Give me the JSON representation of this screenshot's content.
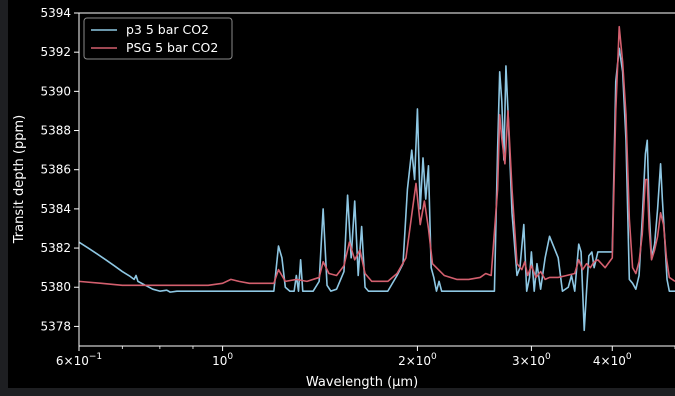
{
  "chart_data": {
    "type": "line",
    "title": "",
    "xlabel": "Wavelength (µm)",
    "ylabel": "Transit depth (ppm)",
    "xscale": "log",
    "xlim": [
      0.6,
      5.0
    ],
    "ylim": [
      5377.0,
      5394.0
    ],
    "grid": false,
    "legend_position": "upper-left",
    "background": "#000000",
    "foreground": "#ffffff",
    "x_ticks": [
      {
        "value": 0.6,
        "base": "6×10",
        "exp": "−1"
      },
      {
        "value": 1.0,
        "base": "10",
        "exp": "0"
      },
      {
        "value": 2.0,
        "base": "2×10",
        "exp": "0"
      },
      {
        "value": 3.0,
        "base": "3×10",
        "exp": "0"
      },
      {
        "value": 4.0,
        "base": "4×10",
        "exp": "0"
      }
    ],
    "y_ticks": [
      5378,
      5380,
      5382,
      5384,
      5386,
      5388,
      5390,
      5392,
      5394
    ],
    "series": [
      {
        "name": "p3 5 bar CO2",
        "color": "#8ec7e3",
        "points": [
          [
            0.6,
            5382.3
          ],
          [
            0.62,
            5382.0
          ],
          [
            0.64,
            5381.7
          ],
          [
            0.66,
            5381.4
          ],
          [
            0.68,
            5381.1
          ],
          [
            0.7,
            5380.8
          ],
          [
            0.72,
            5380.55
          ],
          [
            0.73,
            5380.4
          ],
          [
            0.735,
            5380.6
          ],
          [
            0.74,
            5380.3
          ],
          [
            0.76,
            5380.1
          ],
          [
            0.78,
            5379.9
          ],
          [
            0.8,
            5379.8
          ],
          [
            0.82,
            5379.85
          ],
          [
            0.83,
            5379.75
          ],
          [
            0.85,
            5379.8
          ],
          [
            0.9,
            5379.8
          ],
          [
            1.0,
            5379.8
          ],
          [
            1.1,
            5379.8
          ],
          [
            1.18,
            5379.8
          ],
          [
            1.2,
            5379.8
          ],
          [
            1.22,
            5382.1
          ],
          [
            1.235,
            5381.5
          ],
          [
            1.25,
            5380.0
          ],
          [
            1.27,
            5379.8
          ],
          [
            1.29,
            5379.8
          ],
          [
            1.3,
            5380.6
          ],
          [
            1.31,
            5379.8
          ],
          [
            1.32,
            5381.4
          ],
          [
            1.33,
            5379.8
          ],
          [
            1.34,
            5379.8
          ],
          [
            1.38,
            5379.8
          ],
          [
            1.41,
            5380.3
          ],
          [
            1.43,
            5384.0
          ],
          [
            1.45,
            5380.1
          ],
          [
            1.47,
            5379.8
          ],
          [
            1.5,
            5379.9
          ],
          [
            1.54,
            5380.8
          ],
          [
            1.56,
            5384.7
          ],
          [
            1.58,
            5381.5
          ],
          [
            1.6,
            5384.4
          ],
          [
            1.62,
            5380.6
          ],
          [
            1.64,
            5383.1
          ],
          [
            1.66,
            5380.0
          ],
          [
            1.68,
            5379.8
          ],
          [
            1.72,
            5379.8
          ],
          [
            1.8,
            5379.8
          ],
          [
            1.86,
            5380.6
          ],
          [
            1.9,
            5381.2
          ],
          [
            1.93,
            5385.0
          ],
          [
            1.96,
            5387.0
          ],
          [
            1.98,
            5385.5
          ],
          [
            2.0,
            5389.1
          ],
          [
            2.02,
            5384.0
          ],
          [
            2.04,
            5386.6
          ],
          [
            2.06,
            5384.5
          ],
          [
            2.08,
            5386.2
          ],
          [
            2.1,
            5381.0
          ],
          [
            2.12,
            5380.5
          ],
          [
            2.14,
            5379.8
          ],
          [
            2.16,
            5380.3
          ],
          [
            2.18,
            5379.8
          ],
          [
            2.3,
            5379.8
          ],
          [
            2.5,
            5379.8
          ],
          [
            2.6,
            5379.8
          ],
          [
            2.63,
            5379.8
          ],
          [
            2.66,
            5387.0
          ],
          [
            2.68,
            5391.0
          ],
          [
            2.7,
            5389.5
          ],
          [
            2.72,
            5386.5
          ],
          [
            2.74,
            5391.3
          ],
          [
            2.76,
            5389.0
          ],
          [
            2.8,
            5383.8
          ],
          [
            2.85,
            5380.6
          ],
          [
            2.88,
            5381.0
          ],
          [
            2.92,
            5383.2
          ],
          [
            2.95,
            5379.8
          ],
          [
            2.98,
            5380.5
          ],
          [
            3.0,
            5381.8
          ],
          [
            3.03,
            5379.8
          ],
          [
            3.06,
            5381.2
          ],
          [
            3.1,
            5379.9
          ],
          [
            3.15,
            5381.5
          ],
          [
            3.2,
            5382.6
          ],
          [
            3.3,
            5381.5
          ],
          [
            3.35,
            5379.8
          ],
          [
            3.42,
            5380.0
          ],
          [
            3.46,
            5380.6
          ],
          [
            3.5,
            5379.8
          ],
          [
            3.55,
            5382.2
          ],
          [
            3.58,
            5381.8
          ],
          [
            3.6,
            5379.8
          ],
          [
            3.62,
            5377.8
          ],
          [
            3.65,
            5379.8
          ],
          [
            3.68,
            5381.6
          ],
          [
            3.72,
            5381.8
          ],
          [
            3.75,
            5381.0
          ],
          [
            3.8,
            5381.8
          ],
          [
            3.9,
            5381.8
          ],
          [
            4.0,
            5381.8
          ],
          [
            4.05,
            5390.5
          ],
          [
            4.1,
            5392.2
          ],
          [
            4.15,
            5391.0
          ],
          [
            4.2,
            5387.5
          ],
          [
            4.25,
            5380.4
          ],
          [
            4.3,
            5380.2
          ],
          [
            4.35,
            5379.9
          ],
          [
            4.4,
            5380.6
          ],
          [
            4.45,
            5383.5
          ],
          [
            4.5,
            5386.8
          ],
          [
            4.53,
            5387.5
          ],
          [
            4.56,
            5384.0
          ],
          [
            4.6,
            5381.5
          ],
          [
            4.65,
            5382.2
          ],
          [
            4.7,
            5384.0
          ],
          [
            4.75,
            5386.3
          ],
          [
            4.78,
            5384.5
          ],
          [
            4.82,
            5382.5
          ],
          [
            4.86,
            5380.4
          ],
          [
            4.9,
            5379.8
          ],
          [
            5.0,
            5379.8
          ]
        ]
      },
      {
        "name": "PSG 5 bar CO2",
        "color": "#d35f6e",
        "points": [
          [
            0.6,
            5380.3
          ],
          [
            0.65,
            5380.2
          ],
          [
            0.7,
            5380.1
          ],
          [
            0.75,
            5380.1
          ],
          [
            0.8,
            5380.1
          ],
          [
            0.85,
            5380.1
          ],
          [
            0.9,
            5380.1
          ],
          [
            0.95,
            5380.1
          ],
          [
            1.0,
            5380.2
          ],
          [
            1.03,
            5380.4
          ],
          [
            1.06,
            5380.3
          ],
          [
            1.1,
            5380.2
          ],
          [
            1.2,
            5380.2
          ],
          [
            1.22,
            5380.9
          ],
          [
            1.25,
            5380.3
          ],
          [
            1.3,
            5380.4
          ],
          [
            1.35,
            5380.3
          ],
          [
            1.41,
            5380.5
          ],
          [
            1.43,
            5381.3
          ],
          [
            1.46,
            5380.7
          ],
          [
            1.5,
            5380.6
          ],
          [
            1.54,
            5381.1
          ],
          [
            1.57,
            5382.3
          ],
          [
            1.6,
            5381.4
          ],
          [
            1.63,
            5381.9
          ],
          [
            1.66,
            5380.7
          ],
          [
            1.7,
            5380.3
          ],
          [
            1.8,
            5380.3
          ],
          [
            1.86,
            5380.7
          ],
          [
            1.92,
            5381.5
          ],
          [
            1.96,
            5383.7
          ],
          [
            1.99,
            5385.3
          ],
          [
            2.02,
            5383.2
          ],
          [
            2.05,
            5384.4
          ],
          [
            2.08,
            5383.0
          ],
          [
            2.11,
            5381.2
          ],
          [
            2.2,
            5380.6
          ],
          [
            2.3,
            5380.4
          ],
          [
            2.4,
            5380.4
          ],
          [
            2.5,
            5380.5
          ],
          [
            2.55,
            5380.7
          ],
          [
            2.6,
            5380.6
          ],
          [
            2.66,
            5385.0
          ],
          [
            2.68,
            5388.8
          ],
          [
            2.7,
            5387.6
          ],
          [
            2.73,
            5386.3
          ],
          [
            2.76,
            5389.0
          ],
          [
            2.8,
            5385.0
          ],
          [
            2.85,
            5381.2
          ],
          [
            2.9,
            5380.9
          ],
          [
            2.93,
            5381.3
          ],
          [
            2.96,
            5380.6
          ],
          [
            3.0,
            5381.1
          ],
          [
            3.05,
            5380.5
          ],
          [
            3.1,
            5380.8
          ],
          [
            3.15,
            5380.4
          ],
          [
            3.2,
            5380.5
          ],
          [
            3.3,
            5380.5
          ],
          [
            3.4,
            5380.6
          ],
          [
            3.5,
            5380.7
          ],
          [
            3.55,
            5381.4
          ],
          [
            3.6,
            5380.9
          ],
          [
            3.65,
            5381.2
          ],
          [
            3.7,
            5381.0
          ],
          [
            3.75,
            5381.3
          ],
          [
            3.8,
            5381.4
          ],
          [
            3.9,
            5381.0
          ],
          [
            4.0,
            5381.5
          ],
          [
            4.05,
            5389.0
          ],
          [
            4.1,
            5393.3
          ],
          [
            4.15,
            5391.5
          ],
          [
            4.2,
            5388.8
          ],
          [
            4.25,
            5383.5
          ],
          [
            4.3,
            5381.0
          ],
          [
            4.35,
            5380.7
          ],
          [
            4.4,
            5381.3
          ],
          [
            4.45,
            5382.7
          ],
          [
            4.5,
            5385.5
          ],
          [
            4.53,
            5385.5
          ],
          [
            4.56,
            5383.0
          ],
          [
            4.6,
            5381.4
          ],
          [
            4.65,
            5381.9
          ],
          [
            4.7,
            5382.6
          ],
          [
            4.75,
            5383.8
          ],
          [
            4.8,
            5383.2
          ],
          [
            4.85,
            5381.5
          ],
          [
            4.9,
            5380.5
          ],
          [
            5.0,
            5380.3
          ]
        ]
      }
    ]
  }
}
